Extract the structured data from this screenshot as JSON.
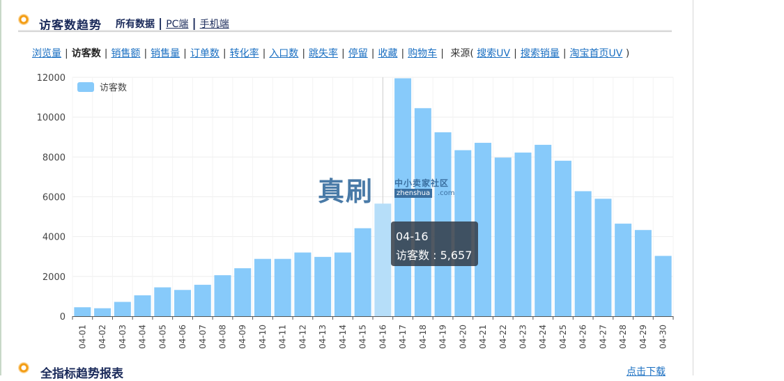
{
  "header": {
    "title": "访客数趋势",
    "subnav": {
      "all": "所有数据",
      "pc": "PC端",
      "mobile": "手机端"
    }
  },
  "metrics": {
    "items": [
      "浏览量",
      "访客数",
      "销售额",
      "销售量",
      "订单数",
      "转化率",
      "入口数",
      "跳失率",
      "停留",
      "收藏",
      "购物车"
    ],
    "source_label": "来源(",
    "source_items": [
      "搜索UV",
      "搜索销量",
      "淘宝首页UV"
    ],
    "source_close": ")"
  },
  "tooltip": {
    "date": "04-16",
    "label": "访客数 : 5,657"
  },
  "watermark": {
    "big": "真刷",
    "small": "中小卖家社区",
    "url": "zhenshua",
    "com": ".com"
  },
  "footer": {
    "title": "全指标趋势报表",
    "download": "点击下载"
  },
  "colors": {
    "bar": "#87cafa",
    "bar_highlight": "#b6def9",
    "link": "#1a6fc2",
    "title": "#1a2a5a"
  },
  "chart_data": {
    "type": "bar",
    "categories": [
      "04-01",
      "04-02",
      "04-03",
      "04-04",
      "04-05",
      "04-06",
      "04-07",
      "04-08",
      "04-09",
      "04-10",
      "04-11",
      "04-12",
      "04-13",
      "04-14",
      "04-15",
      "04-16",
      "04-17",
      "04-18",
      "04-19",
      "04-20",
      "04-21",
      "04-22",
      "04-23",
      "04-24",
      "04-25",
      "04-26",
      "04-27",
      "04-28",
      "04-29",
      "04-30"
    ],
    "series": [
      {
        "name": "访客数",
        "values": [
          450,
          400,
          720,
          1050,
          1450,
          1320,
          1580,
          2060,
          2410,
          2880,
          2880,
          3200,
          2980,
          3200,
          4420,
          5657,
          11950,
          10450,
          9240,
          8340,
          8710,
          7970,
          8220,
          8610,
          7810,
          6280,
          5900,
          4650,
          4330,
          3030
        ]
      }
    ],
    "highlight_index": 15,
    "yticks": [
      0,
      2000,
      4000,
      6000,
      8000,
      10000,
      12000
    ],
    "ylim": [
      0,
      12000
    ],
    "legend_position": "top-left",
    "grid": true
  }
}
